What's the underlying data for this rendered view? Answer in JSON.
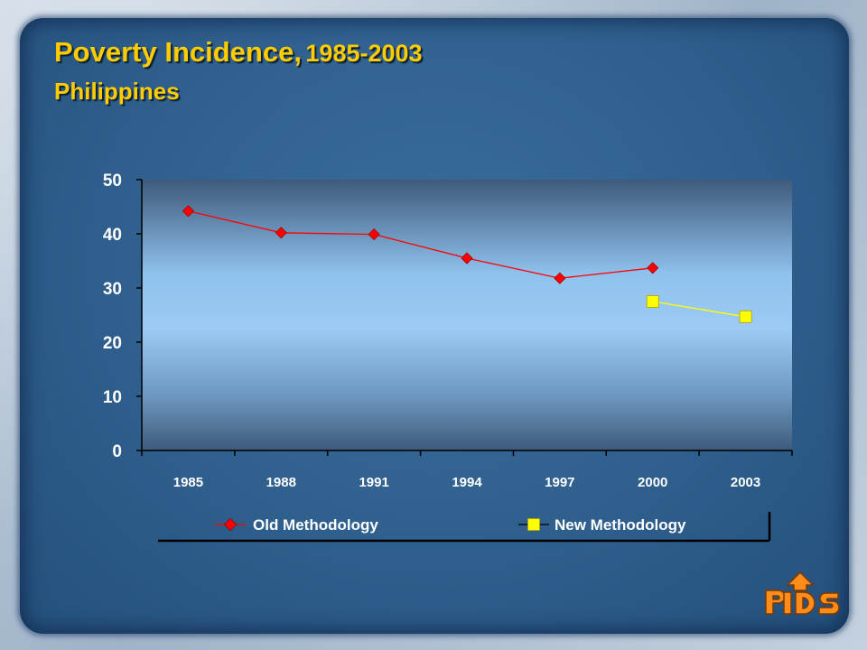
{
  "slide": {
    "title_main": "Poverty Incidence,",
    "title_years": "1985-2003",
    "subtitle": "Philippines"
  },
  "colors": {
    "title": "#ffcc00",
    "old_series": "#ff0000",
    "new_series": "#ffff00",
    "panel": "#2f5f8d"
  },
  "chart_data": {
    "type": "line",
    "categories": [
      "1985",
      "1988",
      "1991",
      "1994",
      "1997",
      "2000",
      "2003"
    ],
    "series": [
      {
        "name": "Old Methodology",
        "values": [
          44.2,
          40.2,
          39.9,
          35.5,
          31.8,
          33.7,
          null
        ],
        "color": "#ff0000",
        "marker": "diamond"
      },
      {
        "name": "New Methodology",
        "values": [
          null,
          null,
          null,
          null,
          null,
          27.5,
          24.7
        ],
        "color": "#ffff00",
        "marker": "square"
      }
    ],
    "ylim": [
      0,
      50
    ],
    "yticks": [
      0,
      10,
      20,
      30,
      40,
      50
    ],
    "grid": false,
    "legend": "bottom"
  },
  "icons": {
    "logo": "pids-logo"
  }
}
